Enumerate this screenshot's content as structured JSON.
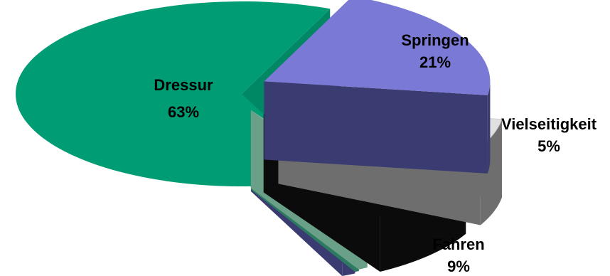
{
  "chart_data": {
    "type": "pie",
    "title": "",
    "slices": [
      {
        "label": "Dressur",
        "value": 63,
        "display": "63%",
        "color": "#009c73"
      },
      {
        "label": "Springen",
        "value": 21,
        "display": "21%",
        "color": "#7b79d6"
      },
      {
        "label": "Vielseitigkeit",
        "value": 5,
        "display": "5%",
        "color": "#e0e0e0"
      },
      {
        "label": "Fahren",
        "value": 9,
        "display": "9%",
        "color": "#000000"
      },
      {
        "label": "",
        "value": 0.7,
        "display": "",
        "color": "#8ab89e"
      },
      {
        "label": "",
        "value": 0.3,
        "display": "",
        "color": "#3c8f73"
      },
      {
        "label": "",
        "value": 1.0,
        "display": "",
        "color": "#7b79d6"
      }
    ]
  }
}
